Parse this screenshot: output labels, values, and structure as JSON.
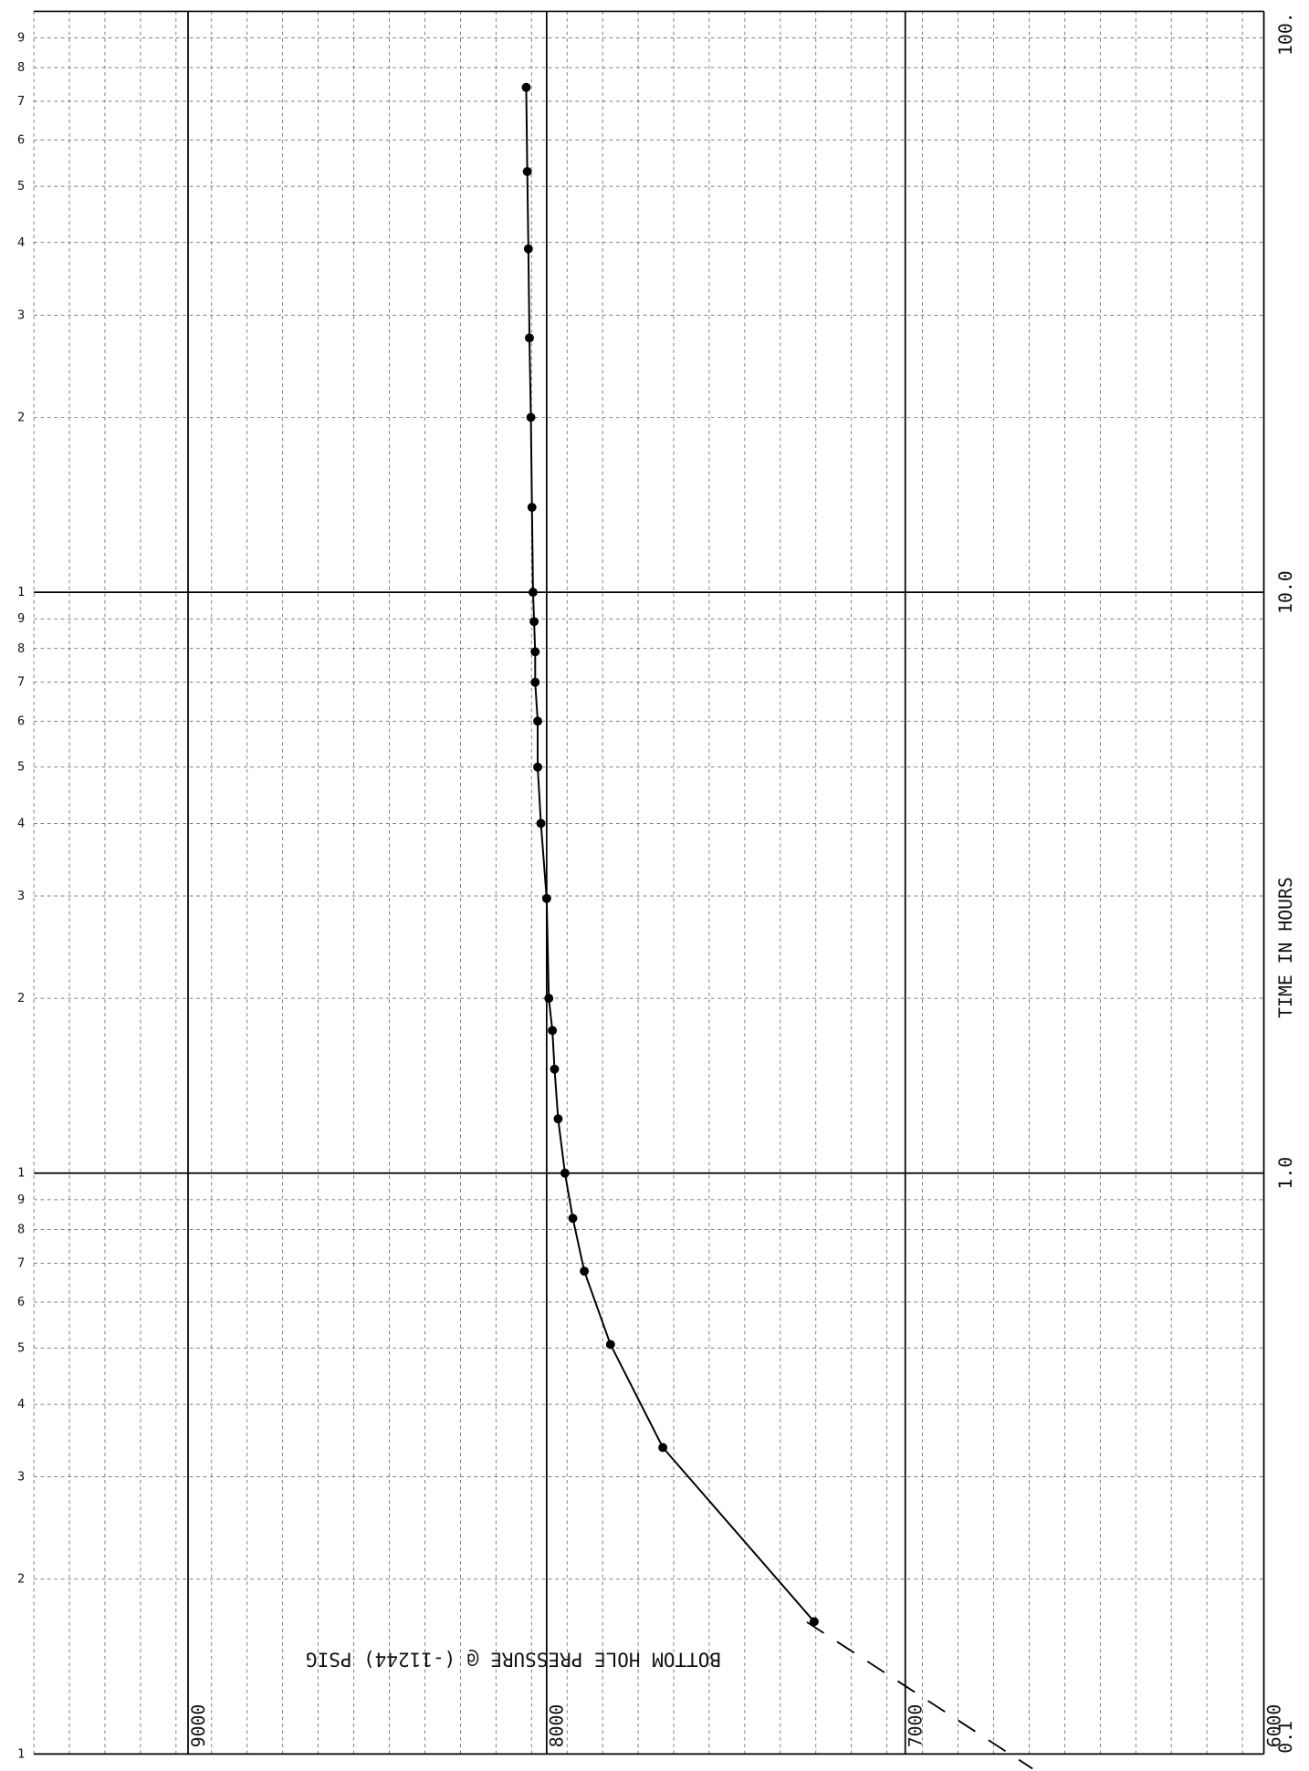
{
  "chart_data": {
    "type": "line",
    "title": "BOTTOM HOLE PRESSURE @ (-11244) PSIG",
    "y_label": "TIME IN HOURS",
    "ylog": true,
    "ylim": [
      0.1,
      100
    ],
    "yticks": [
      0.1,
      {
        "value": 1,
        "label": "1.0"
      },
      {
        "value": 10,
        "label": "10.0"
      },
      {
        "value": 100,
        "label": "100."
      }
    ],
    "cycle_labels": [
      "1",
      "2",
      "3",
      "4",
      "5",
      "6",
      "7",
      "8",
      "9"
    ],
    "xlim": [
      9430,
      6000
    ],
    "xticks": [
      9000,
      8000,
      7000,
      6000
    ],
    "grid": true,
    "color": "#000000",
    "series": [
      {
        "x": [
          0.169,
          0.337,
          0.507,
          0.678,
          0.836,
          1.0,
          1.24,
          1.51,
          1.76,
          2.0,
          2.97,
          4.0,
          5.0,
          6.0,
          7.0,
          7.9,
          8.9,
          10.0,
          14,
          20,
          27.4,
          39,
          53,
          74
        ],
        "values": [
          7254,
          7676,
          7822,
          7895,
          7927,
          7949,
          7968,
          7978,
          7984,
          7994,
          8000,
          8016,
          8025,
          8025,
          8032,
          8032,
          8035,
          8038,
          8041,
          8044,
          8048,
          8051,
          8054,
          8057
        ]
      }
    ]
  }
}
